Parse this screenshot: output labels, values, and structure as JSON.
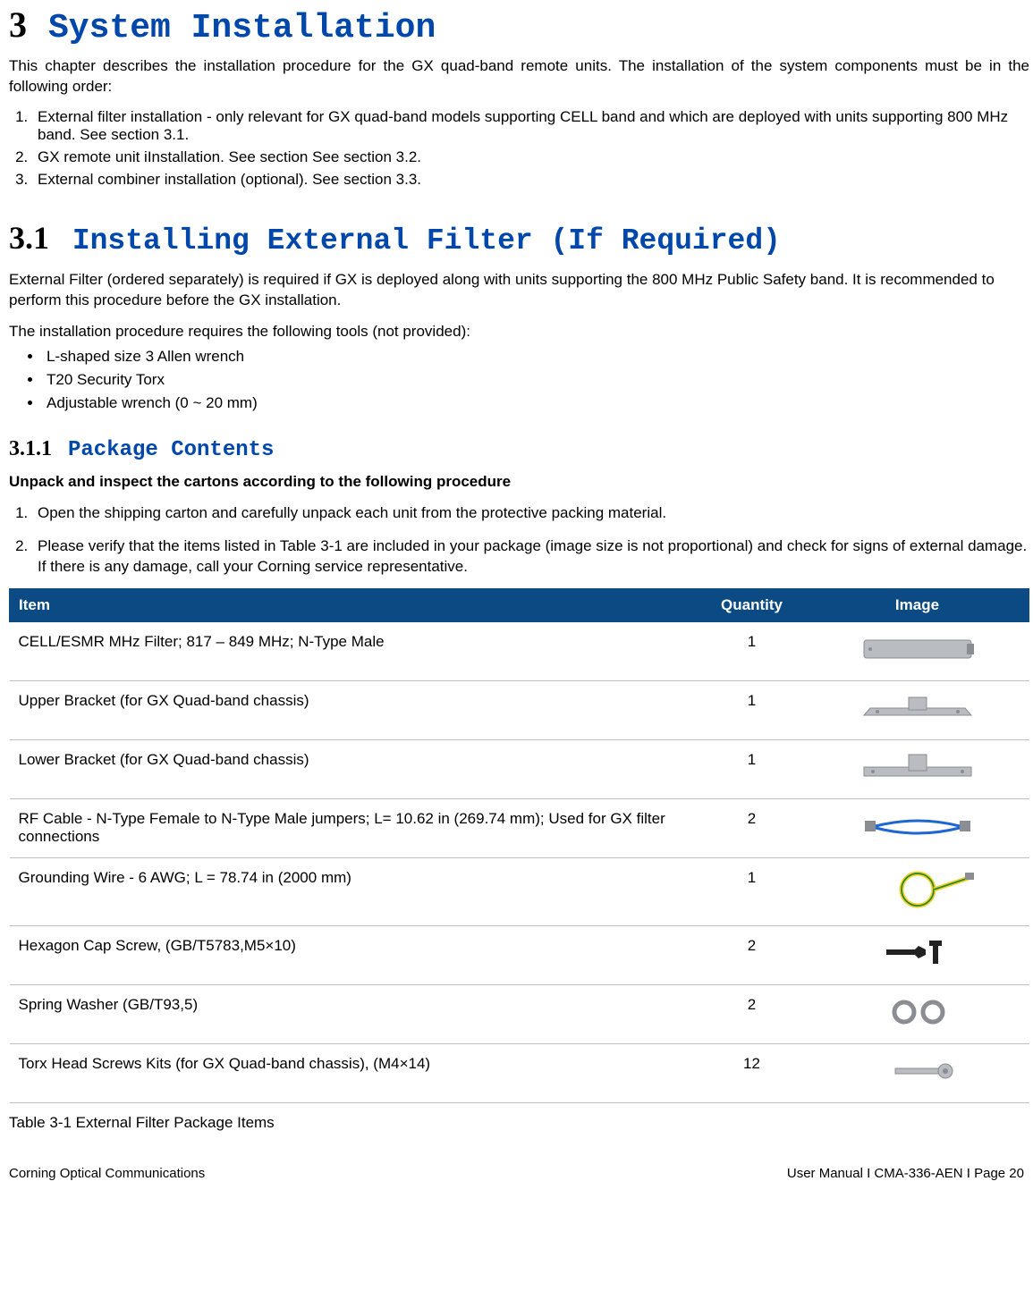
{
  "chapter": {
    "num": "3",
    "title": "System Installation"
  },
  "intro": "This chapter describes the installation procedure for the GX quad-band remote units. The installation of the system components must be in the following order:",
  "order_list": [
    "External filter installation - only relevant for GX quad-band models supporting CELL band and which are deployed with units supporting 800 MHz band. See section 3.1.",
    "GX remote unit iInstallation. See section See section 3.2.",
    "External combiner installation (optional). See section 3.3."
  ],
  "section31": {
    "num": "3.1",
    "title": "Installing External Filter (If Required)",
    "p1": "External Filter (ordered separately) is required if GX is deployed along with units supporting the 800 MHz Public Safety band. It is recommended to perform this procedure before the GX installation.",
    "p2": "The installation procedure requires the following tools (not provided):",
    "tools": [
      "L-shaped size 3 Allen wrench",
      "T20 Security Torx",
      "Adjustable wrench (0 ~ 20 mm)"
    ]
  },
  "section311": {
    "num": "3.1.1",
    "title": "Package Contents",
    "boldline": "Unpack and inspect the cartons according to the following procedure",
    "steps": [
      "Open the shipping carton and carefully unpack each unit from the protective packing material.",
      "Please verify that the items listed in Table 3-1 are included in your package (image size is not proportional) and check for signs of external damage. If there is any damage, call your Corning service representative."
    ]
  },
  "table": {
    "headers": [
      "Item",
      "Quantity",
      "Image"
    ],
    "header_bg": "#0b4a82",
    "header_fg": "#ffffff",
    "border_color": "#bfbfbf",
    "rows": [
      {
        "item": "CELL/ESMR MHz Filter; 817 – 849 MHz; N-Type Male",
        "qty": "1",
        "img": "filter"
      },
      {
        "item": "Upper Bracket (for GX Quad-band chassis)",
        "qty": "1",
        "img": "upper"
      },
      {
        "item": "Lower Bracket (for GX Quad-band chassis)",
        "qty": "1",
        "img": "lower"
      },
      {
        "item": "RF Cable - N-Type Female to N-Type Male jumpers; L= 10.62 in (269.74 mm); Used for GX filter connections",
        "qty": "2",
        "img": "cable"
      },
      {
        "item": "Grounding Wire - 6 AWG; L = 78.74 in (2000 mm)",
        "qty": "1",
        "img": "ground"
      },
      {
        "item": "Hexagon Cap Screw, (GB/T5783,M5×10)",
        "qty": "2",
        "img": "hex"
      },
      {
        "item": "Spring Washer (GB/T93,5)",
        "qty": "2",
        "img": "washer"
      },
      {
        "item": "Torx Head Screws Kits (for GX Quad-band chassis), (M4×14)",
        "qty": "12",
        "img": "torx"
      }
    ],
    "caption": "Table 3-1 External Filter Package Items"
  },
  "footer": {
    "left": "Corning Optical Communications",
    "right": "User Manual I CMA-336-AEN I Page 20"
  },
  "svg_colors": {
    "metal": "#b9bcc0",
    "metal_dark": "#8a8d91",
    "blue_cable": "#1e66d0",
    "yellow": "#f3d12a",
    "black": "#222222"
  }
}
